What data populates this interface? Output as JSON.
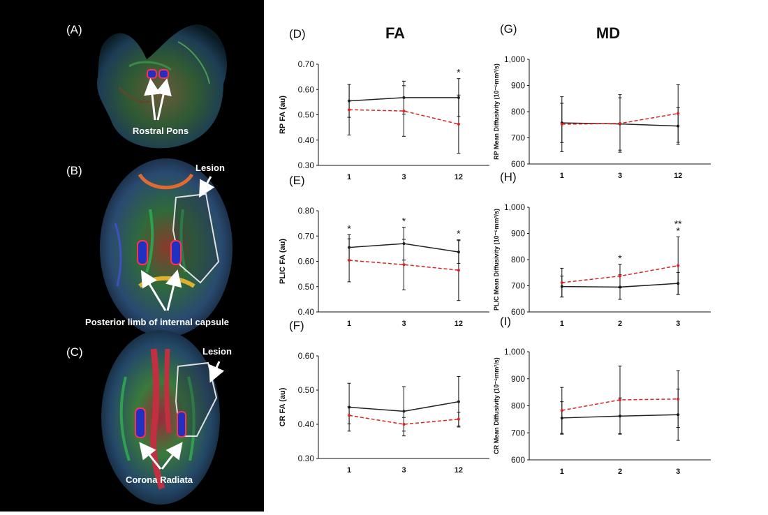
{
  "brain_panels": [
    {
      "letter": "(A)",
      "annotation": "Rostral Pons",
      "lesion_label": ""
    },
    {
      "letter": "(B)",
      "annotation": "Posterior limb of internal capsule",
      "lesion_label": "Lesion"
    },
    {
      "letter": "(C)",
      "annotation": "Corona Radiata",
      "lesion_label": "Lesion"
    }
  ],
  "column_titles": {
    "fa": "FA",
    "md": "MD"
  },
  "series_colors": {
    "group_black": "#222222",
    "group_red": "#e02020"
  },
  "chart_data": [
    {
      "id": "D",
      "letter": "(D)",
      "type": "line",
      "title": "",
      "ylabel": "RP FA (au)",
      "categories": [
        "1",
        "3",
        "12"
      ],
      "ylim": [
        0.3,
        0.7
      ],
      "yticks": [
        "0.30",
        "0.40",
        "0.50",
        "0.60",
        "0.70"
      ],
      "series": [
        {
          "name": "black",
          "style": "solid",
          "values": [
            0.555,
            0.568,
            0.568
          ],
          "error": [
            0.065,
            0.065,
            0.075
          ]
        },
        {
          "name": "red",
          "style": "dashed",
          "values": [
            0.52,
            0.515,
            0.463
          ],
          "error": [
            0.1,
            0.1,
            0.115
          ]
        }
      ],
      "stars": [
        {
          "index": 2,
          "label": "*"
        }
      ]
    },
    {
      "id": "G",
      "letter": "(G)",
      "type": "line",
      "title": "",
      "ylabel": "RP Mean Diffusivity (10⁻⁶mm²/s)",
      "categories": [
        "1",
        "3",
        "12"
      ],
      "ylim": [
        600,
        1000
      ],
      "yticks": [
        "600",
        "700",
        "800",
        "900",
        "1,000"
      ],
      "series": [
        {
          "name": "black",
          "style": "solid",
          "values": [
            757,
            753,
            745
          ],
          "error": [
            75,
            100,
            70
          ]
        },
        {
          "name": "red",
          "style": "dashed",
          "values": [
            752,
            755,
            793
          ],
          "error": [
            105,
            110,
            110
          ]
        }
      ],
      "stars": []
    },
    {
      "id": "E",
      "letter": "(E)",
      "type": "line",
      "title": "",
      "ylabel": "PLIC FA (au)",
      "categories": [
        "1",
        "3",
        "12"
      ],
      "ylim": [
        0.4,
        0.8
      ],
      "yticks": [
        "0.40",
        "0.50",
        "0.60",
        "0.70",
        "0.80"
      ],
      "series": [
        {
          "name": "black",
          "style": "solid",
          "values": [
            0.655,
            0.67,
            0.637
          ],
          "error": [
            0.05,
            0.065,
            0.045
          ]
        },
        {
          "name": "red",
          "style": "dashed",
          "values": [
            0.604,
            0.587,
            0.565
          ],
          "error": [
            0.085,
            0.1,
            0.12
          ]
        }
      ],
      "stars": [
        {
          "index": 0,
          "label": "*"
        },
        {
          "index": 1,
          "label": "*"
        },
        {
          "index": 2,
          "label": "*"
        }
      ]
    },
    {
      "id": "H",
      "letter": "(H)",
      "type": "line",
      "title": "",
      "ylabel": "PLIC Mean Diffusivity (10⁻⁶mm²/s)",
      "categories": [
        "1",
        "2",
        "3"
      ],
      "ylim": [
        600,
        1000
      ],
      "yticks": [
        "600",
        "700",
        "800",
        "900",
        "1,000"
      ],
      "series": [
        {
          "name": "black",
          "style": "solid",
          "values": [
            697,
            695,
            709
          ],
          "error": [
            40,
            47,
            42
          ]
        },
        {
          "name": "red",
          "style": "dashed",
          "values": [
            712,
            737,
            777
          ],
          "error": [
            55,
            45,
            110
          ]
        }
      ],
      "stars": [
        {
          "index": 1,
          "label": "*"
        },
        {
          "index": 2,
          "label": "*"
        },
        {
          "index": 2,
          "label": "**"
        }
      ]
    },
    {
      "id": "F",
      "letter": "(F)",
      "type": "line",
      "title": "",
      "ylabel": "CR FA (au)",
      "categories": [
        "1",
        "3",
        "12"
      ],
      "ylim": [
        0.3,
        0.6
      ],
      "yticks": [
        "0.30",
        "0.40",
        "0.50",
        "0.60"
      ],
      "series": [
        {
          "name": "black",
          "style": "solid",
          "values": [
            0.45,
            0.438,
            0.466
          ],
          "error": [
            0.07,
            0.072,
            0.074
          ]
        },
        {
          "name": "red",
          "style": "dashed",
          "values": [
            0.426,
            0.4,
            0.415
          ],
          "error": [
            0.025,
            0.02,
            0.02
          ]
        }
      ],
      "stars": []
    },
    {
      "id": "I",
      "letter": "(I)",
      "type": "line",
      "title": "",
      "ylabel": "CR Mean Diffusivity (10⁻⁶mm²/s)",
      "categories": [
        "1",
        "2",
        "3"
      ],
      "ylim": [
        600,
        1000
      ],
      "yticks": [
        "600",
        "700",
        "800",
        "900",
        "1,000"
      ],
      "series": [
        {
          "name": "black",
          "style": "solid",
          "values": [
            755,
            762,
            767
          ],
          "error": [
            60,
            67,
            95
          ]
        },
        {
          "name": "red",
          "style": "dashed",
          "values": [
            783,
            822,
            825
          ],
          "error": [
            85,
            125,
            105
          ]
        }
      ],
      "stars": []
    }
  ]
}
